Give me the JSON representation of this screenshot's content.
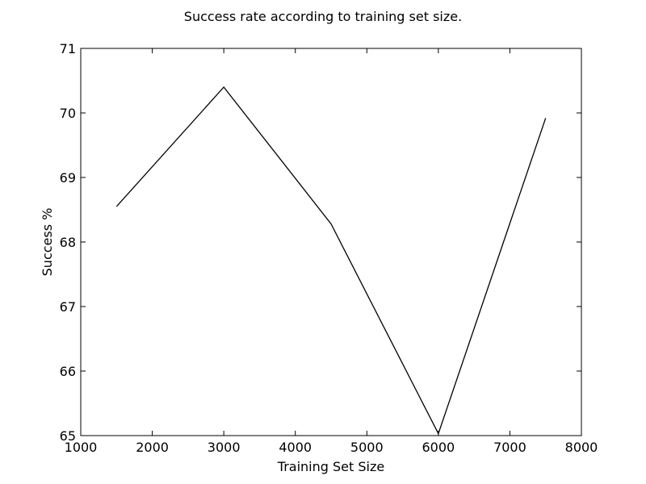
{
  "chart_data": {
    "type": "line",
    "title": "Success rate according to training set size.",
    "xlabel": "Training Set Size",
    "ylabel": "Success %",
    "xlim": [
      1000,
      8000
    ],
    "ylim": [
      65,
      71
    ],
    "x_ticks": [
      1000,
      2000,
      3000,
      4000,
      5000,
      6000,
      7000,
      8000
    ],
    "y_ticks": [
      65,
      66,
      67,
      68,
      69,
      70,
      71
    ],
    "grid": false,
    "line_color": "#000000",
    "series": [
      {
        "x": [
          1500,
          3000,
          4500,
          6000,
          7500
        ],
        "values": [
          68.55,
          70.4,
          68.28,
          65.03,
          69.92
        ]
      }
    ]
  }
}
